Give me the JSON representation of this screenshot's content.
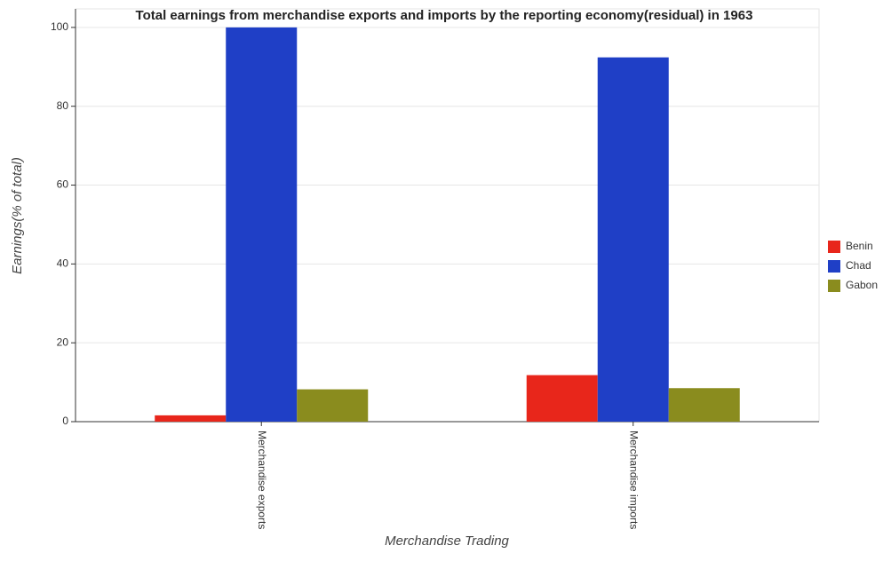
{
  "chart_data": {
    "type": "bar",
    "title": "Total earnings from merchandise exports and imports by the reporting economy(residual) in 1963",
    "x_label": "Merchandise Trading",
    "y_label": "Earnings(% of total)",
    "categories": [
      "Merchandise exports",
      "Merchandise imports"
    ],
    "series": [
      {
        "name": "Benin",
        "color": "#e8261b",
        "values": [
          1.6,
          11.8
        ]
      },
      {
        "name": "Chad",
        "color": "#1f3fc6",
        "values": [
          100,
          92.4
        ]
      },
      {
        "name": "Gabon",
        "color": "#8a8c1e",
        "values": [
          8.2,
          8.5
        ]
      }
    ],
    "ylim": [
      0,
      104.7
    ],
    "yticks": [
      0,
      20,
      40,
      60,
      80,
      100
    ],
    "grid": true,
    "legend": "right"
  }
}
